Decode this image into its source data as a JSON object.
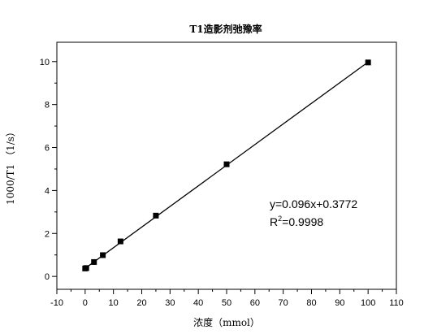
{
  "chart_data": {
    "type": "scatter",
    "title": "T1造影剂弛豫率",
    "xlabel": "浓度（mmol）",
    "ylabel": "1000/T1 （1/s）",
    "xlim": [
      -10,
      110
    ],
    "ylim": [
      -0.6,
      10.9
    ],
    "x_ticks": [
      "-10",
      "0",
      "10",
      "20",
      "30",
      "40",
      "50",
      "60",
      "70",
      "80",
      "90",
      "100",
      "110"
    ],
    "y_ticks": [
      "0",
      "2",
      "4",
      "6",
      "8",
      "10"
    ],
    "series": [
      {
        "x": [
          0,
          0.39,
          3.125,
          6.25,
          12.5,
          25,
          50,
          100
        ],
        "y": [
          0.37,
          0.39,
          0.67,
          0.99,
          1.63,
          2.83,
          5.22,
          9.96
        ]
      }
    ],
    "fit_line": {
      "slope": 0.096,
      "intercept": 0.3772,
      "x_range": [
        0,
        100
      ]
    },
    "annotations": {
      "equation": "y=0.096x+0.3772",
      "r2_prefix": "R",
      "r2_sup": "2",
      "r2_suffix": "=0.9998"
    },
    "grid": false,
    "legend": "none"
  }
}
